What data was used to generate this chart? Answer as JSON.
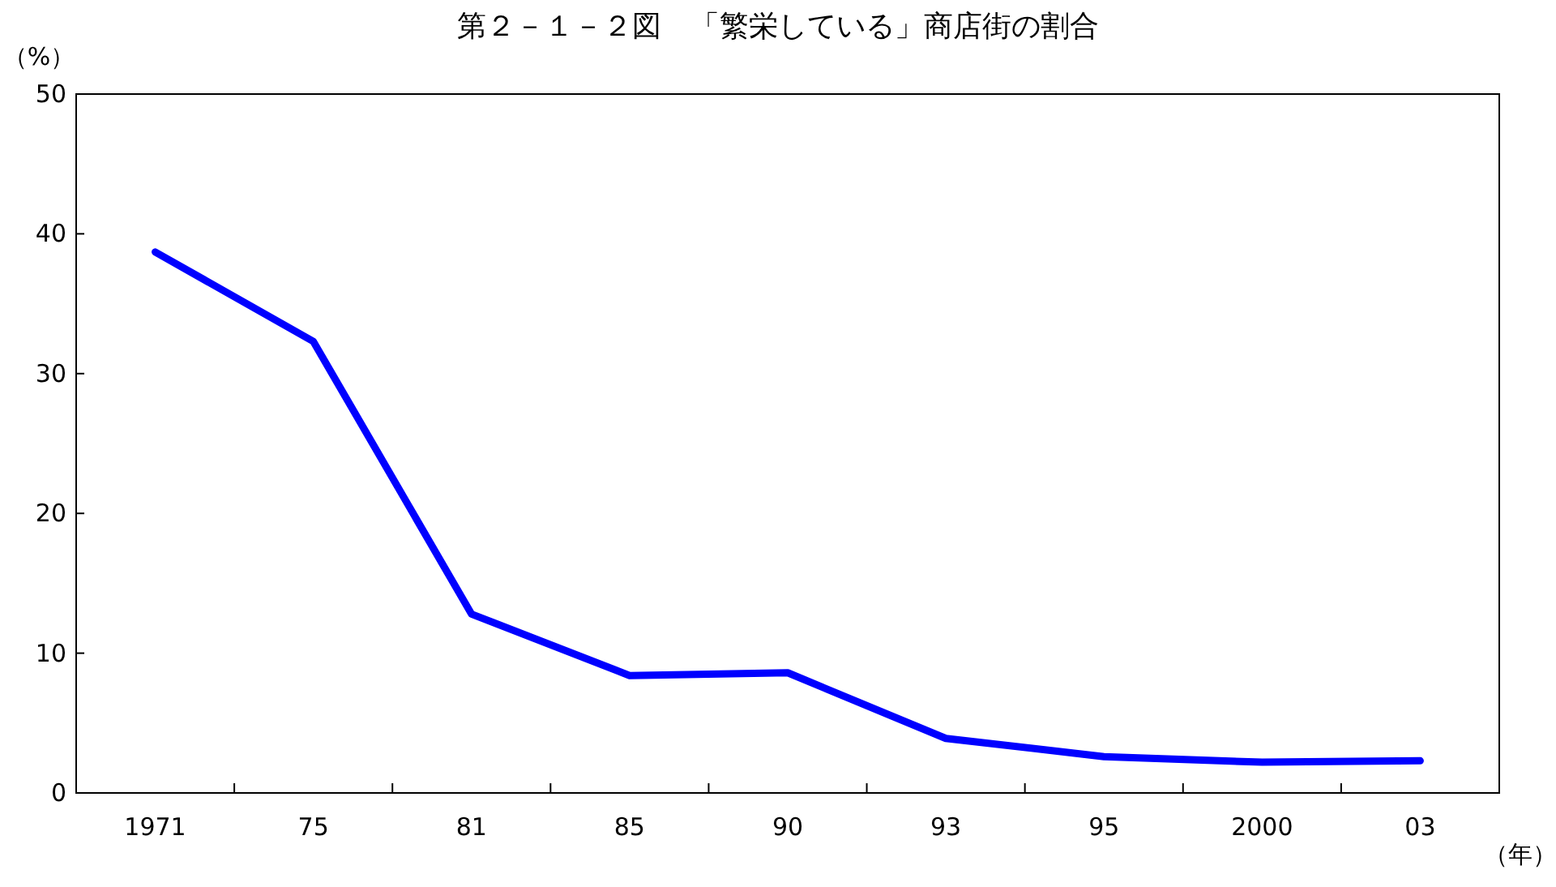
{
  "chart_data": {
    "type": "line",
    "title": "第２－１－２図　「繁栄している」商店街の割合",
    "ylabel": "（%）",
    "xlabel": "（年）",
    "categories": [
      "1971",
      "75",
      "81",
      "85",
      "90",
      "93",
      "95",
      "2000",
      "03"
    ],
    "series": [
      {
        "color": "#0000ff",
        "values": [
          38.7,
          32.3,
          12.8,
          8.4,
          8.6,
          3.9,
          2.6,
          2.2,
          2.3
        ]
      }
    ],
    "ylim": [
      0,
      50
    ],
    "yticks": [
      0,
      10,
      20,
      30,
      40,
      50
    ]
  }
}
